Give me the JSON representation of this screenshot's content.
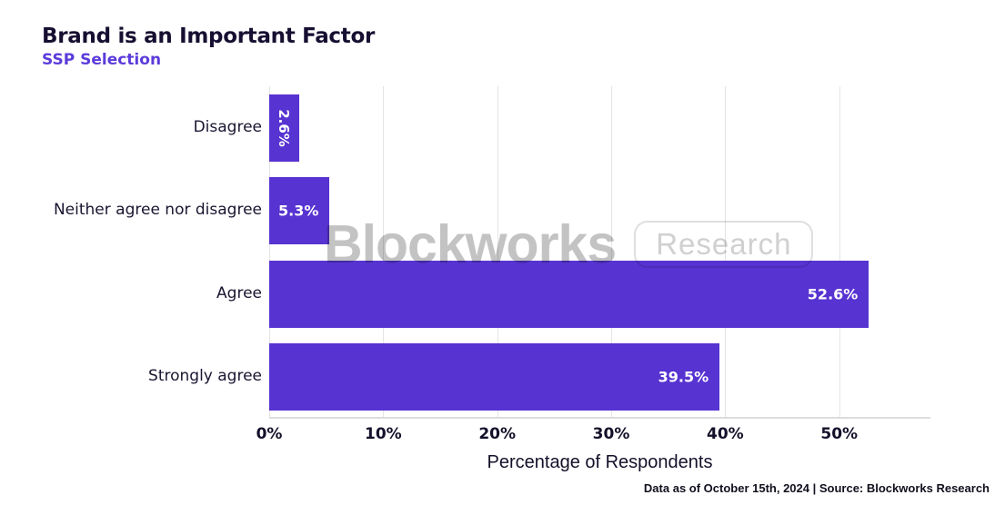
{
  "header": {
    "title": "Brand is an Important Factor",
    "subtitle": "SSP Selection"
  },
  "watermark": {
    "brand": "Blockworks",
    "badge": "Research"
  },
  "footer": {
    "note": "Data as of October 15th, 2024 | Source: Blockworks Research"
  },
  "colors": {
    "bar": "#5733d1",
    "subtitle": "#5c3bdb",
    "title_text": "#170f31",
    "gridline": "#e4e4e4",
    "value_label": "#ffffff",
    "watermark_gray": "#c3c3c3"
  },
  "chart_data": {
    "type": "bar",
    "orientation": "horizontal",
    "title": "Brand is an Important Factor",
    "subtitle": "SSP Selection",
    "categories": [
      "Disagree",
      "Neither agree nor disagree",
      "Agree",
      "Strongly agree"
    ],
    "values": [
      2.6,
      5.3,
      52.6,
      39.5
    ],
    "value_labels": [
      "2.6%",
      "5.3%",
      "52.6%",
      "39.5%"
    ],
    "xlabel": "Percentage of Respondents",
    "ylabel": "",
    "xlim": [
      0,
      58
    ],
    "xtick_values": [
      0,
      10,
      20,
      30,
      40,
      50
    ],
    "xtick_labels": [
      "0%",
      "10%",
      "20%",
      "30%",
      "40%",
      "50%"
    ],
    "grid": "vertical",
    "legend": "none",
    "bar_color": "#5733d1"
  }
}
